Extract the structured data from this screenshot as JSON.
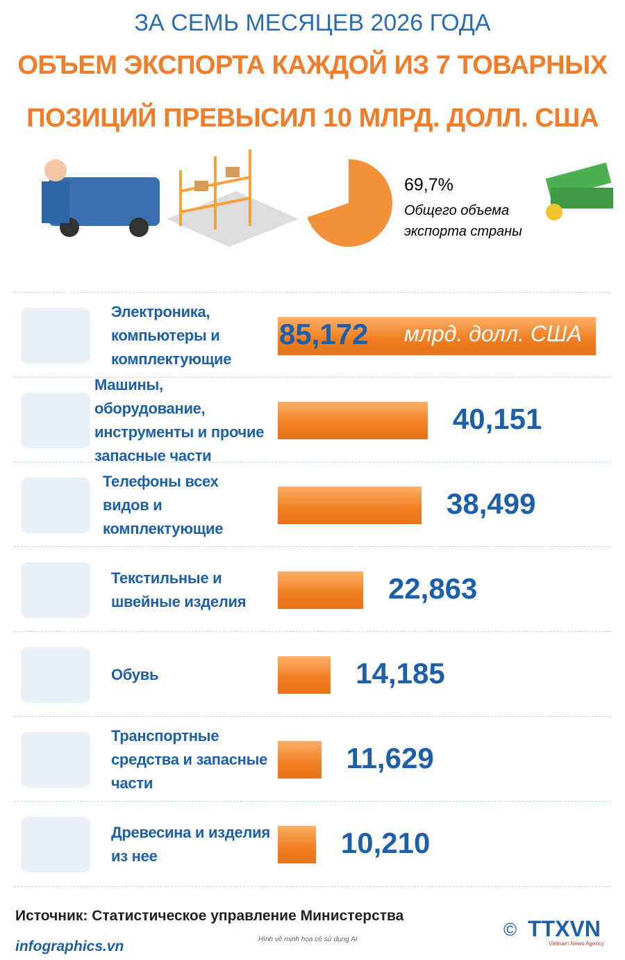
{
  "header": {
    "subtitle": "ЗА СЕМЬ МЕСЯЦЕВ 2026 ГОДА",
    "title": "ОБЪЕМ ЭКСПОРТА КАЖДОЙ ИЗ 7 ТОВАРНЫХ ПОЗИЦИЙ ПРЕВЫСИЛ 10 МЛРД. ДОЛЛ. США"
  },
  "chart_data": [
    {
      "type": "pie",
      "values": [
        69.7
      ],
      "value_labels": [
        "69,7%"
      ],
      "label": "Общего объема экспорта страны",
      "color": "#f5913a"
    },
    {
      "type": "bar",
      "categories": [
        "Электроника, компьютеры и комплектующие",
        "Машины, оборудование, инструменты и прочие запасные части",
        "Телефоны всех видов и комплектующие",
        "Текстильные и швейные изделия",
        "Обувь",
        "Транспортные средства и запасные части",
        "Древесина и изделия из нее"
      ],
      "values": [
        85.172,
        40.151,
        38.499,
        22.863,
        14.185,
        11.629,
        10.21
      ],
      "value_labels": [
        "85,172",
        "40,151",
        "38,499",
        "22,863",
        "14,185",
        "11,629",
        "10,210"
      ],
      "unit": "млрд. долл. США",
      "color": "#f5913a"
    }
  ],
  "footer": {
    "source": "Источник: Статистическое управление Министерства",
    "site": "infographics.vn",
    "note": "Hình vẽ minh họa có sử dụng AI",
    "copyright": "©",
    "logo": "TTXVN",
    "agency": "Vietnam News Agency"
  }
}
